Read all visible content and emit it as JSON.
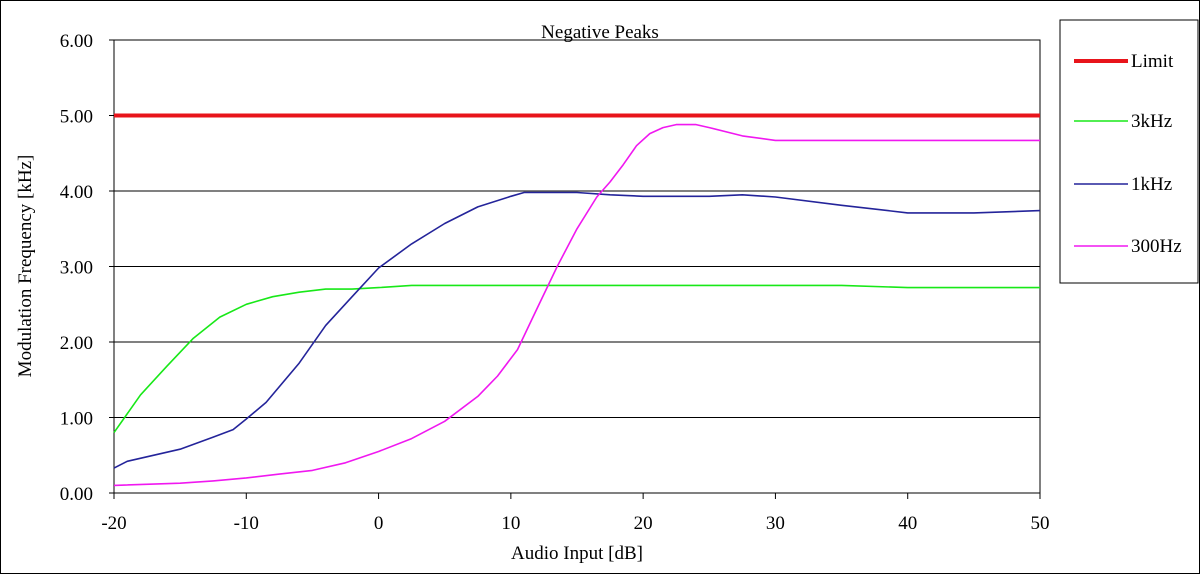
{
  "chart_data": {
    "type": "line",
    "title": "Negative Peaks",
    "xlabel": "Audio Input [dB]",
    "ylabel": "Modulation Frequency [kHz]",
    "xlim": [
      -20,
      50
    ],
    "ylim": [
      0,
      6
    ],
    "x_ticks": [
      -20,
      -10,
      0,
      10,
      20,
      30,
      40,
      50
    ],
    "x_tick_labels": [
      "-20",
      "-10",
      "0",
      "10",
      "20",
      "30",
      "40",
      "50"
    ],
    "y_ticks": [
      0,
      1,
      2,
      3,
      4,
      5,
      6
    ],
    "y_tick_labels": [
      "0.00",
      "1.00",
      "2.00",
      "3.00",
      "4.00",
      "5.00",
      "6.00"
    ],
    "grid": "horizontal",
    "legend_position": "right",
    "series": [
      {
        "name": "Limit",
        "color": "#e8141b",
        "width": 4,
        "x": [
          -20,
          50
        ],
        "y": [
          5.0,
          5.0
        ]
      },
      {
        "name": "3kHz",
        "color": "#18e818",
        "width": 1.6,
        "x": [
          -20,
          -18,
          -16,
          -14,
          -12,
          -10,
          -8,
          -6,
          -4,
          -2,
          0,
          2.5,
          5,
          10,
          15,
          20,
          25,
          30,
          35,
          40,
          45,
          50
        ],
        "y": [
          0.8,
          1.3,
          1.68,
          2.05,
          2.33,
          2.5,
          2.6,
          2.66,
          2.7,
          2.7,
          2.72,
          2.75,
          2.75,
          2.75,
          2.75,
          2.75,
          2.75,
          2.75,
          2.75,
          2.72,
          2.72,
          2.72
        ]
      },
      {
        "name": "1kHz",
        "color": "#24249a",
        "width": 1.6,
        "x": [
          -20,
          -19,
          -15,
          -12.5,
          -11,
          -10,
          -8.5,
          -6,
          -4,
          -2,
          0,
          2.5,
          5,
          7.5,
          10,
          11,
          12.5,
          15,
          17.5,
          20,
          22.5,
          25,
          27.5,
          30,
          35,
          40,
          45,
          50
        ],
        "y": [
          0.33,
          0.42,
          0.58,
          0.74,
          0.84,
          0.98,
          1.2,
          1.72,
          2.22,
          2.6,
          2.98,
          3.3,
          3.57,
          3.79,
          3.93,
          3.98,
          3.98,
          3.98,
          3.95,
          3.93,
          3.93,
          3.93,
          3.95,
          3.92,
          3.81,
          3.71,
          3.71,
          3.74
        ]
      },
      {
        "name": "300Hz",
        "color": "#f018f0",
        "width": 1.6,
        "x": [
          -20,
          -15,
          -12.5,
          -10,
          -7.5,
          -5,
          -2.5,
          0,
          2.5,
          5,
          7.5,
          9,
          10.5,
          12,
          13.5,
          15,
          16.5,
          17.5,
          18.5,
          19.5,
          20.5,
          21.5,
          22.5,
          24,
          25,
          27.5,
          30,
          35,
          40,
          45,
          50
        ],
        "y": [
          0.1,
          0.13,
          0.16,
          0.2,
          0.25,
          0.3,
          0.4,
          0.55,
          0.72,
          0.95,
          1.28,
          1.55,
          1.9,
          2.45,
          3.0,
          3.5,
          3.92,
          4.12,
          4.35,
          4.6,
          4.76,
          4.84,
          4.88,
          4.88,
          4.84,
          4.73,
          4.67,
          4.67,
          4.67,
          4.67,
          4.67
        ]
      }
    ]
  }
}
